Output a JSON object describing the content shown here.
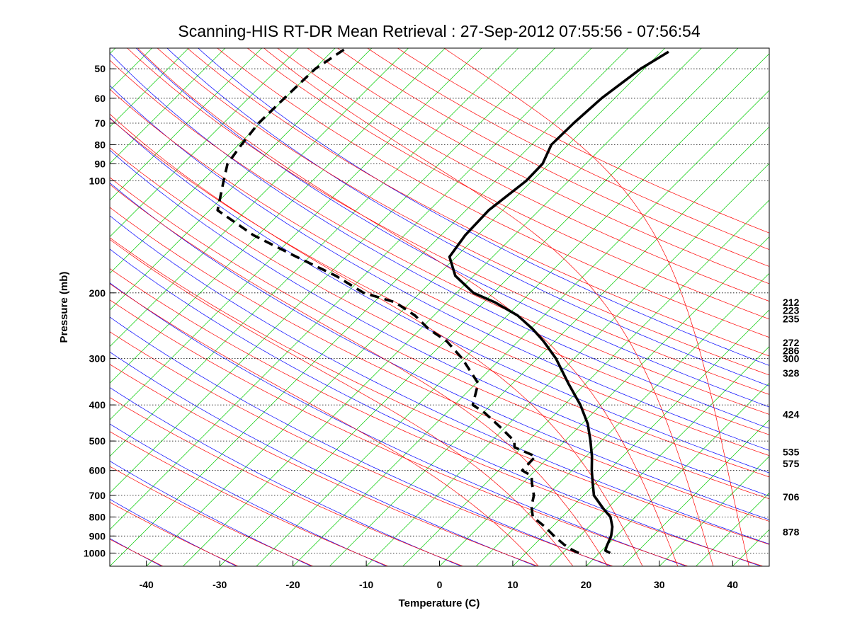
{
  "chart_data": {
    "type": "line",
    "title": "Scanning-HIS RT-DR Mean Retrieval : 27-Sep-2012 07:55:56 - 07:56:54",
    "xlabel": "Temperature (C)",
    "ylabel": "Pressure (mb)",
    "xlim": [
      -45,
      45
    ],
    "ylim": [
      1085,
      44
    ],
    "y_scale": "log (skew-T diagram, isotherms skewed 45°)",
    "x_ticks": [
      -40,
      -30,
      -20,
      -10,
      0,
      10,
      20,
      30,
      40
    ],
    "y_ticks": [
      50,
      60,
      70,
      80,
      90,
      100,
      200,
      300,
      400,
      500,
      600,
      700,
      800,
      900,
      1000
    ],
    "grid": "dotted horizontal lines at pressure ticks",
    "right_labels": [
      {
        "pressure": 212,
        "label": "212"
      },
      {
        "pressure": 223,
        "label": "223"
      },
      {
        "pressure": 235,
        "label": "235"
      },
      {
        "pressure": 272,
        "label": "272"
      },
      {
        "pressure": 286,
        "label": "286"
      },
      {
        "pressure": 300,
        "label": "300"
      },
      {
        "pressure": 328,
        "label": "328"
      },
      {
        "pressure": 424,
        "label": "424"
      },
      {
        "pressure": 535,
        "label": "535"
      },
      {
        "pressure": 575,
        "label": "575"
      },
      {
        "pressure": 706,
        "label": "706"
      },
      {
        "pressure": 878,
        "label": "878"
      }
    ],
    "background_lines": {
      "isotherms": {
        "color": "#00cc00",
        "from": -140,
        "to": 40,
        "step": 5
      },
      "dry_adiabats": {
        "color": "#ff0000",
        "theta_K_from": 230,
        "theta_K_to": 480,
        "step": 10
      },
      "mixing_ratio_lines": {
        "color": "#0000ff",
        "theta_K_from": 230,
        "theta_K_to": 400,
        "step": 10
      },
      "moist_adiabats": {
        "color": "#ff0000",
        "surface_T_C": [
          10,
          15,
          20,
          25,
          30,
          35,
          40
        ]
      }
    },
    "series": [
      {
        "style": "solid",
        "color": "#000000",
        "points": [
          [
            1000,
            21.5
          ],
          [
            985,
            20.5
          ],
          [
            960,
            20.1
          ],
          [
            900,
            19.3
          ],
          [
            850,
            18.2
          ],
          [
            800,
            16.6
          ],
          [
            760,
            14.5
          ],
          [
            700,
            11.4
          ],
          [
            650,
            9.6
          ],
          [
            600,
            7.7
          ],
          [
            550,
            5.8
          ],
          [
            500,
            3.5
          ],
          [
            450,
            0.8
          ],
          [
            400,
            -2.8
          ],
          [
            350,
            -7.4
          ],
          [
            300,
            -12.5
          ],
          [
            270,
            -16.5
          ],
          [
            250,
            -19.7
          ],
          [
            230,
            -23.6
          ],
          [
            212,
            -28.5
          ],
          [
            200,
            -32.7
          ],
          [
            180,
            -37.5
          ],
          [
            160,
            -40.9
          ],
          [
            140,
            -41.7
          ],
          [
            120,
            -41.9
          ],
          [
            100,
            -40.8
          ],
          [
            90,
            -40.9
          ],
          [
            80,
            -42.3
          ],
          [
            70,
            -42.2
          ],
          [
            60,
            -41.8
          ],
          [
            50,
            -40.5
          ],
          [
            45,
            -39.0
          ]
        ]
      },
      {
        "style": "dashed",
        "color": "#000000",
        "points": [
          [
            1000,
            17.2
          ],
          [
            975,
            15.5
          ],
          [
            950,
            14.1
          ],
          [
            900,
            11.5
          ],
          [
            850,
            9.0
          ],
          [
            800,
            6.0
          ],
          [
            750,
            4.4
          ],
          [
            700,
            3.2
          ],
          [
            650,
            1.3
          ],
          [
            620,
            0.2
          ],
          [
            600,
            -1.8
          ],
          [
            550,
            -1.9
          ],
          [
            520,
            -6.0
          ],
          [
            500,
            -6.9
          ],
          [
            460,
            -10.6
          ],
          [
            420,
            -14.8
          ],
          [
            400,
            -17.5
          ],
          [
            350,
            -19.7
          ],
          [
            300,
            -25.3
          ],
          [
            270,
            -29.7
          ],
          [
            250,
            -33.9
          ],
          [
            230,
            -37.6
          ],
          [
            212,
            -42.1
          ],
          [
            200,
            -47.7
          ],
          [
            180,
            -53.8
          ],
          [
            160,
            -61.8
          ],
          [
            140,
            -70.6
          ],
          [
            120,
            -78.9
          ],
          [
            100,
            -82.1
          ],
          [
            90,
            -83.9
          ],
          [
            80,
            -84.6
          ],
          [
            70,
            -85.2
          ],
          [
            60,
            -85.1
          ],
          [
            50,
            -84.9
          ],
          [
            44,
            -83.5
          ]
        ]
      }
    ]
  }
}
